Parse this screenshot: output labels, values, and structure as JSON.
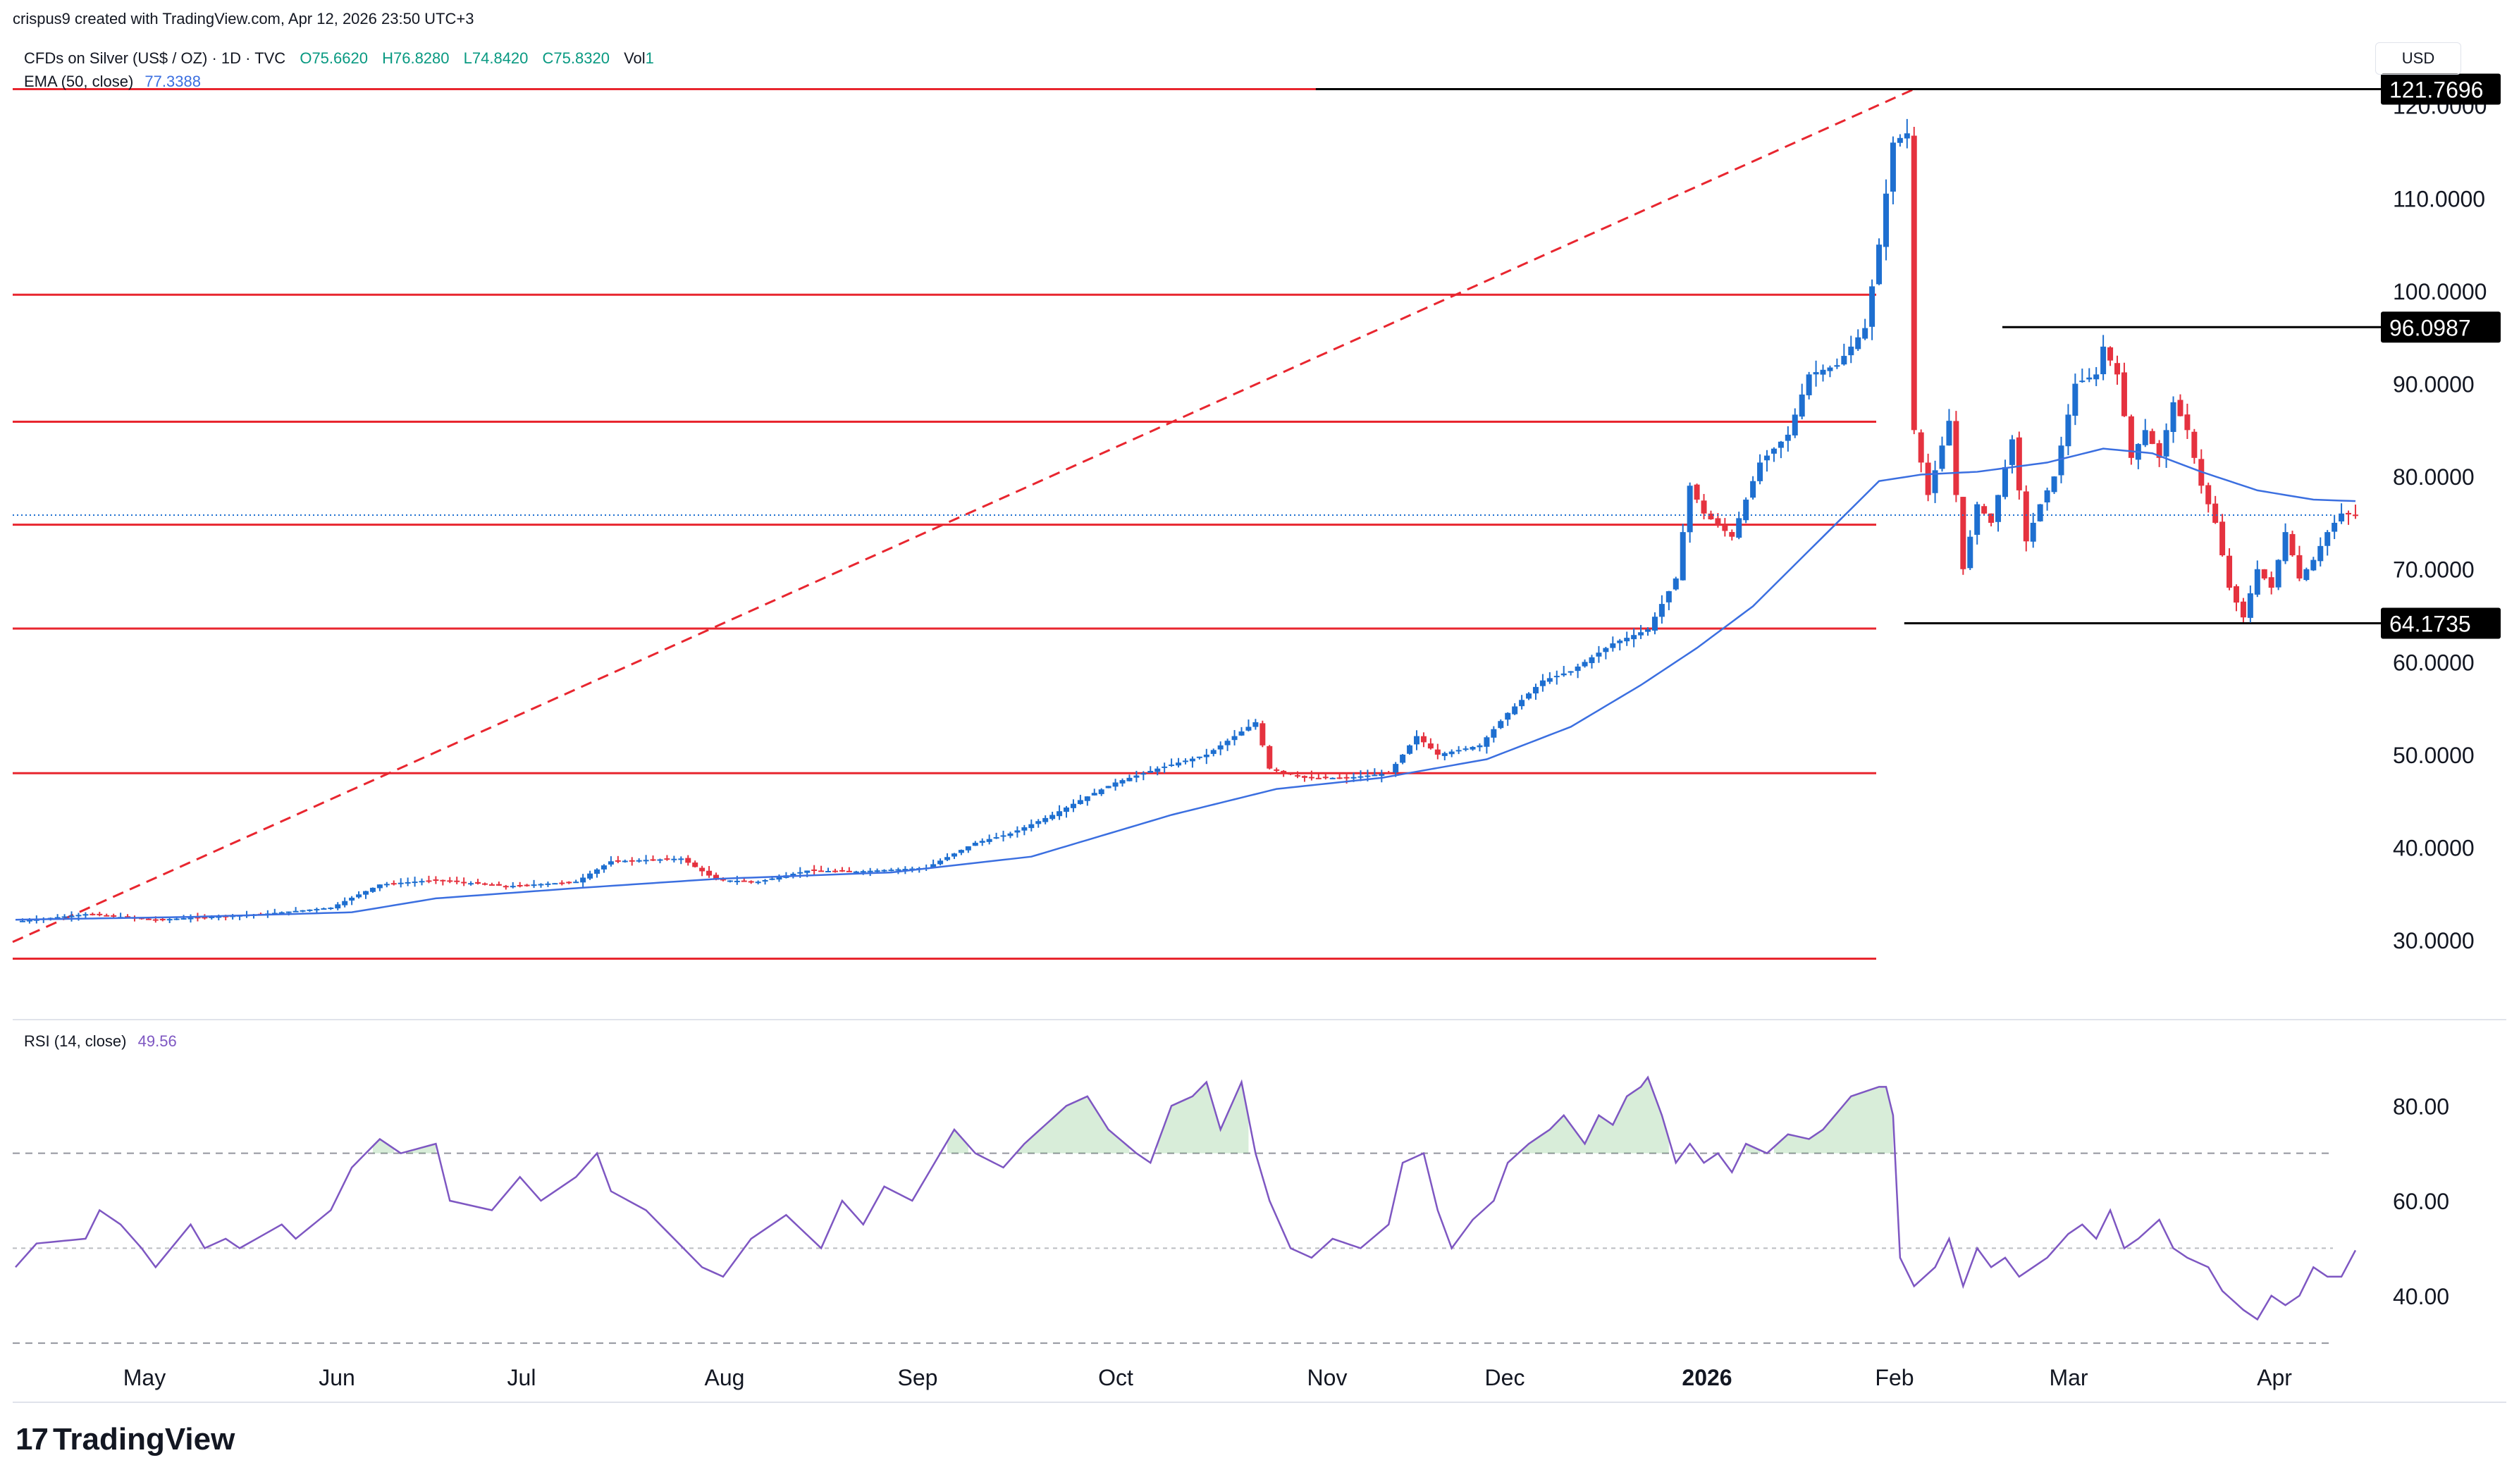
{
  "header": {
    "author_line": "crispus9 created with TradingView.com, Apr 12, 2026 23:50 UTC+3",
    "symbol": "CFDs on Silver (US$ / OZ) · 1D · TVC",
    "open": "O75.6620",
    "high": "H76.8280",
    "low": "L74.8420",
    "close": "C75.8320",
    "vol": "Vol",
    "vol_value": "1",
    "ema_label": "EMA (50, close)",
    "ema_value": "77.3388",
    "rsi_label": "RSI (14, close)",
    "rsi_value": "49.56",
    "currency": "USD"
  },
  "brand": {
    "name": "TradingView"
  },
  "colors": {
    "up": "#1e6fd0",
    "down": "#e5323f",
    "ema": "#3b6fe0",
    "rsi": "#7e57c2",
    "level": "#e8262f"
  },
  "chart_data": {
    "type": "candlestick",
    "title": "CFDs on Silver (US$ / OZ) · 1D · TVC",
    "x_labels": [
      "May",
      "Jun",
      "Jul",
      "Aug",
      "Sep",
      "Oct",
      "Nov",
      "Dec",
      "2026",
      "Feb",
      "Mar",
      "Apr"
    ],
    "y_ticks": [
      "120.0000",
      "110.0000",
      "100.0000",
      "90.0000",
      "80.0000",
      "70.0000",
      "60.0000",
      "50.0000",
      "40.0000",
      "30.0000"
    ],
    "ylim": [
      21.5,
      125.3
    ],
    "horizontal_levels": [
      121.77,
      99.6,
      85.9,
      74.8,
      63.6,
      48.0,
      28.0
    ],
    "trend_line": {
      "from": [
        0,
        29.8
      ],
      "to": [
        270,
        121.7
      ],
      "style": "dashed"
    },
    "price_labels": [
      {
        "value": "121.7696",
        "price": 121.77,
        "from_bar": 186
      },
      {
        "value": "96.0987",
        "price": 96.1,
        "from_bar": 284
      },
      {
        "value": "64.1735",
        "price": 64.17,
        "from_bar": 270
      }
    ],
    "last_price": 75.83,
    "anchors": [
      [
        0,
        32
      ],
      [
        10,
        32.8
      ],
      [
        20,
        32.2
      ],
      [
        35,
        32.8
      ],
      [
        45,
        33.5
      ],
      [
        52,
        36
      ],
      [
        60,
        36.5
      ],
      [
        70,
        35.8
      ],
      [
        80,
        36.3
      ],
      [
        85,
        38.5
      ],
      [
        95,
        38.8
      ],
      [
        100,
        36.5
      ],
      [
        106,
        36.3
      ],
      [
        113,
        37.5
      ],
      [
        120,
        37.4
      ],
      [
        130,
        37.8
      ],
      [
        137,
        40.5
      ],
      [
        142,
        41.5
      ],
      [
        148,
        43.5
      ],
      [
        153,
        45.5
      ],
      [
        157,
        47
      ],
      [
        163,
        48.5
      ],
      [
        170,
        50
      ],
      [
        175,
        52.5
      ],
      [
        177,
        53.5
      ],
      [
        179,
        48.5
      ],
      [
        184,
        47.5
      ],
      [
        190,
        47.5
      ],
      [
        196,
        48
      ],
      [
        200,
        52
      ],
      [
        203,
        50
      ],
      [
        209,
        51
      ],
      [
        213,
        54.5
      ],
      [
        218,
        58
      ],
      [
        222,
        59
      ],
      [
        228,
        62
      ],
      [
        233,
        63.5
      ],
      [
        237,
        69
      ],
      [
        239,
        79
      ],
      [
        241,
        76
      ],
      [
        245,
        73.5
      ],
      [
        249,
        81.5
      ],
      [
        253,
        84.5
      ],
      [
        256,
        91
      ],
      [
        260,
        92
      ],
      [
        264,
        96
      ],
      [
        266,
        105
      ],
      [
        268,
        116
      ],
      [
        270,
        117
      ],
      [
        271,
        85
      ],
      [
        273,
        78
      ],
      [
        276,
        86
      ],
      [
        278,
        70
      ],
      [
        280,
        77
      ],
      [
        282,
        75
      ],
      [
        285,
        84
      ],
      [
        287,
        73
      ],
      [
        289,
        77
      ],
      [
        291,
        80
      ],
      [
        294,
        90
      ],
      [
        297,
        91
      ],
      [
        298,
        94
      ],
      [
        300,
        91
      ],
      [
        302,
        82
      ],
      [
        304,
        85
      ],
      [
        306,
        82
      ],
      [
        308,
        88
      ],
      [
        310,
        85
      ],
      [
        312,
        79
      ],
      [
        314,
        75
      ],
      [
        316,
        68
      ],
      [
        318,
        64.8
      ],
      [
        320,
        70
      ],
      [
        322,
        68
      ],
      [
        324,
        74
      ],
      [
        326,
        69
      ],
      [
        328,
        71
      ],
      [
        330,
        74
      ],
      [
        332,
        76
      ],
      [
        334,
        75.8
      ]
    ],
    "ema_anchors": [
      [
        0,
        32.2
      ],
      [
        25,
        32.5
      ],
      [
        48,
        33
      ],
      [
        60,
        34.5
      ],
      [
        80,
        35.6
      ],
      [
        100,
        36.6
      ],
      [
        125,
        37.3
      ],
      [
        145,
        39
      ],
      [
        165,
        43.5
      ],
      [
        180,
        46.3
      ],
      [
        195,
        47.5
      ],
      [
        210,
        49.5
      ],
      [
        222,
        53
      ],
      [
        232,
        57.5
      ],
      [
        240,
        61.5
      ],
      [
        248,
        66
      ],
      [
        256,
        72
      ],
      [
        262,
        76.5
      ],
      [
        266,
        79.5
      ],
      [
        272,
        80.2
      ],
      [
        280,
        80.5
      ],
      [
        290,
        81.5
      ],
      [
        298,
        83
      ],
      [
        305,
        82.5
      ],
      [
        312,
        80.5
      ],
      [
        320,
        78.5
      ],
      [
        328,
        77.5
      ],
      [
        334,
        77.34
      ]
    ],
    "rsi": {
      "label": "RSI (14, close)",
      "ylim": [
        22,
        94
      ],
      "y_ticks": [
        "80.00",
        "60.00",
        "40.00"
      ],
      "bands": [
        70,
        50,
        30
      ],
      "current": 49.56,
      "anchors": [
        [
          0,
          46
        ],
        [
          3,
          51
        ],
        [
          10,
          52
        ],
        [
          12,
          58
        ],
        [
          15,
          55
        ],
        [
          18,
          50
        ],
        [
          20,
          46
        ],
        [
          25,
          55
        ],
        [
          27,
          50
        ],
        [
          30,
          52
        ],
        [
          32,
          50
        ],
        [
          38,
          55
        ],
        [
          40,
          52
        ],
        [
          45,
          58
        ],
        [
          48,
          67
        ],
        [
          52,
          73
        ],
        [
          55,
          70
        ],
        [
          60,
          72
        ],
        [
          62,
          60
        ],
        [
          68,
          58
        ],
        [
          72,
          65
        ],
        [
          75,
          60
        ],
        [
          80,
          65
        ],
        [
          83,
          70
        ],
        [
          85,
          62
        ],
        [
          90,
          58
        ],
        [
          94,
          52
        ],
        [
          98,
          46
        ],
        [
          101,
          44
        ],
        [
          105,
          52
        ],
        [
          110,
          57
        ],
        [
          115,
          50
        ],
        [
          118,
          60
        ],
        [
          121,
          55
        ],
        [
          124,
          63
        ],
        [
          128,
          60
        ],
        [
          132,
          70
        ],
        [
          134,
          75
        ],
        [
          137,
          70
        ],
        [
          141,
          67
        ],
        [
          144,
          72
        ],
        [
          150,
          80
        ],
        [
          153,
          82
        ],
        [
          156,
          75
        ],
        [
          160,
          70
        ],
        [
          162,
          68
        ],
        [
          165,
          80
        ],
        [
          168,
          82
        ],
        [
          170,
          85
        ],
        [
          172,
          75
        ],
        [
          175,
          85
        ],
        [
          177,
          70
        ],
        [
          179,
          60
        ],
        [
          182,
          50
        ],
        [
          185,
          48
        ],
        [
          188,
          52
        ],
        [
          192,
          50
        ],
        [
          196,
          55
        ],
        [
          198,
          68
        ],
        [
          201,
          70
        ],
        [
          203,
          58
        ],
        [
          205,
          50
        ],
        [
          208,
          56
        ],
        [
          211,
          60
        ],
        [
          213,
          68
        ],
        [
          216,
          72
        ],
        [
          219,
          75
        ],
        [
          221,
          78
        ],
        [
          224,
          72
        ],
        [
          226,
          78
        ],
        [
          228,
          76
        ],
        [
          230,
          82
        ],
        [
          232,
          84
        ],
        [
          233,
          86
        ],
        [
          235,
          78
        ],
        [
          237,
          68
        ],
        [
          239,
          72
        ],
        [
          241,
          68
        ],
        [
          243,
          70
        ],
        [
          245,
          66
        ],
        [
          247,
          72
        ],
        [
          250,
          70
        ],
        [
          253,
          74
        ],
        [
          256,
          73
        ],
        [
          258,
          75
        ],
        [
          262,
          82
        ],
        [
          264,
          83
        ],
        [
          266,
          84
        ],
        [
          267,
          84
        ],
        [
          268,
          78
        ],
        [
          269,
          48
        ],
        [
          271,
          42
        ],
        [
          274,
          46
        ],
        [
          276,
          52
        ],
        [
          278,
          42
        ],
        [
          280,
          50
        ],
        [
          282,
          46
        ],
        [
          284,
          48
        ],
        [
          286,
          44
        ],
        [
          290,
          48
        ],
        [
          293,
          53
        ],
        [
          295,
          55
        ],
        [
          297,
          52
        ],
        [
          299,
          58
        ],
        [
          301,
          50
        ],
        [
          303,
          52
        ],
        [
          306,
          56
        ],
        [
          308,
          50
        ],
        [
          310,
          48
        ],
        [
          313,
          46
        ],
        [
          315,
          41
        ],
        [
          318,
          37
        ],
        [
          320,
          35
        ],
        [
          322,
          40
        ],
        [
          324,
          38
        ],
        [
          326,
          40
        ],
        [
          328,
          46
        ],
        [
          330,
          44
        ],
        [
          332,
          44
        ],
        [
          334,
          49.56
        ]
      ]
    }
  }
}
